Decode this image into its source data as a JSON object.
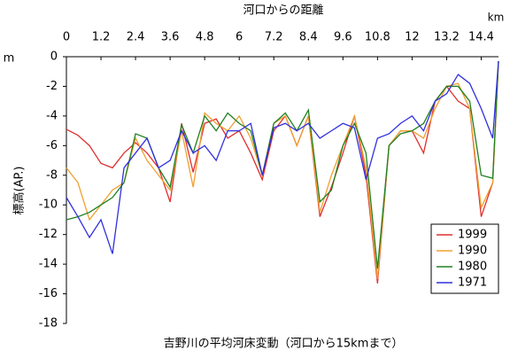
{
  "chart_data": {
    "type": "line",
    "title": "吉野川の平均河床変動（河口から15kmまで）",
    "x_label": "河口からの距離",
    "x_unit": "km",
    "y_unit": "m",
    "y_label": "標高(AP.)",
    "x": [
      0,
      0.4,
      0.8,
      1.2,
      1.6,
      2.0,
      2.4,
      2.8,
      3.2,
      3.6,
      4.0,
      4.4,
      4.8,
      5.2,
      5.6,
      6.0,
      6.4,
      6.8,
      7.2,
      7.6,
      8.0,
      8.4,
      8.8,
      9.2,
      9.6,
      10.0,
      10.4,
      10.8,
      11.2,
      11.6,
      12.0,
      12.4,
      12.8,
      13.2,
      13.6,
      14.0,
      14.4,
      14.8,
      15.0
    ],
    "series": [
      {
        "name": "1999",
        "color": "#e03030",
        "values": [
          -4.9,
          -5.3,
          -6.0,
          -7.2,
          -7.5,
          -6.5,
          -5.8,
          -6.5,
          -7.5,
          -9.8,
          -4.5,
          -7.8,
          -4.5,
          -4.2,
          -5.5,
          -5.0,
          -6.5,
          -8.3,
          -5.0,
          -4.0,
          -6.0,
          -4.0,
          -10.8,
          -8.8,
          -6.5,
          -4.0,
          -8.0,
          -15.3,
          -6.0,
          -5.0,
          -5.0,
          -6.5,
          -3.0,
          -2.0,
          -3.0,
          -3.5,
          -10.8,
          -8.5,
          -0.3
        ]
      },
      {
        "name": "1990",
        "color": "#f0a030",
        "values": [
          -7.5,
          -8.5,
          -11.0,
          -10.0,
          -9.0,
          -8.5,
          -5.5,
          -7.0,
          -8.0,
          -9.0,
          -5.0,
          -8.8,
          -3.8,
          -4.5,
          -5.0,
          -4.0,
          -5.5,
          -8.0,
          -4.5,
          -4.0,
          -6.0,
          -4.0,
          -10.5,
          -8.0,
          -6.0,
          -4.0,
          -7.5,
          -15.0,
          -6.0,
          -5.0,
          -5.0,
          -5.5,
          -3.5,
          -2.0,
          -1.8,
          -3.5,
          -10.2,
          -8.5,
          -0.3
        ]
      },
      {
        "name": "1980",
        "color": "#208020",
        "values": [
          -11.0,
          -10.8,
          -10.5,
          -10.0,
          -9.5,
          -8.5,
          -5.2,
          -5.5,
          -7.5,
          -8.8,
          -4.6,
          -6.5,
          -4.0,
          -5.0,
          -3.8,
          -4.5,
          -5.0,
          -8.0,
          -4.5,
          -3.8,
          -5.0,
          -3.6,
          -9.8,
          -9.0,
          -6.0,
          -4.5,
          -6.5,
          -14.3,
          -6.0,
          -5.2,
          -5.0,
          -4.5,
          -3.0,
          -2.0,
          -2.0,
          -3.0,
          -8.0,
          -8.2,
          -0.3
        ]
      },
      {
        "name": "1971",
        "color": "#3030e0",
        "values": [
          -9.5,
          -10.8,
          -12.2,
          -11.0,
          -13.3,
          -7.5,
          -6.5,
          -5.5,
          -7.5,
          -7.0,
          -5.0,
          -6.5,
          -6.0,
          -7.0,
          -5.0,
          -5.0,
          -4.5,
          -8.0,
          -4.8,
          -4.5,
          -5.0,
          -4.5,
          -5.5,
          -5.0,
          -4.5,
          -4.8,
          -8.3,
          -5.5,
          -5.2,
          -4.5,
          -4.0,
          -5.0,
          -3.0,
          -2.5,
          -1.2,
          -1.8,
          -3.5,
          -5.5,
          -0.3
        ]
      }
    ],
    "xlim": [
      0,
      15
    ],
    "xticks": [
      0,
      1.2,
      2.4,
      3.6,
      4.8,
      6,
      7.2,
      8.4,
      9.6,
      10.8,
      12,
      13.2,
      14.4
    ],
    "ylim": [
      -18,
      0
    ],
    "yticks": [
      0,
      -2,
      -4,
      -6,
      -8,
      -10,
      -12,
      -14,
      -16,
      -18
    ],
    "legend": "lower right"
  }
}
